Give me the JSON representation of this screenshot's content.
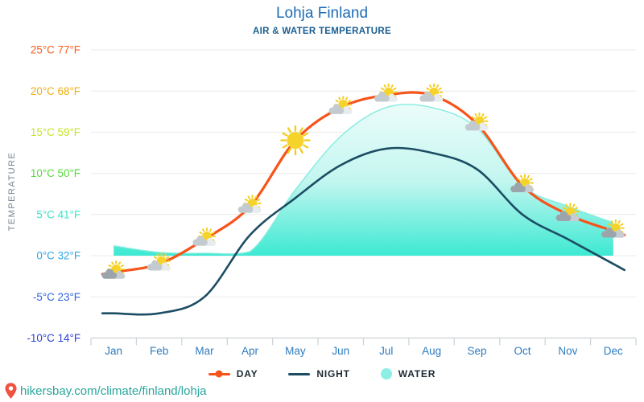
{
  "page": {
    "footer_url": "hikersbay.com/climate/finland/lohja"
  },
  "chart_data": {
    "type": "line",
    "title": "Lohja Finland",
    "subtitle": "AIR & WATER TEMPERATURE",
    "ylabel": "TEMPERATURE",
    "ylim": [
      -10,
      25
    ],
    "grid": true,
    "legend_position": "bottom",
    "months": [
      "Jan",
      "Feb",
      "Mar",
      "Apr",
      "May",
      "Jun",
      "Jul",
      "Aug",
      "Sep",
      "Oct",
      "Nov",
      "Dec"
    ],
    "month_label_color": "#2e7cbf",
    "y_ticks": [
      {
        "t": 25,
        "label": "25°C 77°F",
        "color": "#f4601d"
      },
      {
        "t": 20,
        "label": "20°C 68°F",
        "color": "#eeb012"
      },
      {
        "t": 15,
        "label": "15°C 59°F",
        "color": "#c7e32a"
      },
      {
        "t": 10,
        "label": "10°C 50°F",
        "color": "#58d93f"
      },
      {
        "t": 5,
        "label": "5°C 41°F",
        "color": "#3be3c5"
      },
      {
        "t": 0,
        "label": "0°C 32°F",
        "color": "#31a6e3"
      },
      {
        "t": -5,
        "label": "-5°C 23°F",
        "color": "#2e63e0"
      },
      {
        "t": -10,
        "label": "-10°C 14°F",
        "color": "#2e41d6"
      }
    ],
    "series": [
      {
        "name": "DAY",
        "color": "#f7531a",
        "values": [
          -2,
          -1,
          2,
          6,
          14,
          18,
          19.5,
          19.5,
          16,
          8.5,
          5,
          3
        ],
        "icons": [
          "heavy",
          "light",
          "light",
          "light",
          "sun",
          "light",
          "light",
          "light",
          "light",
          "heavy",
          "heavy",
          "heavy"
        ]
      },
      {
        "name": "NIGHT",
        "color": "#1b4d63",
        "values": [
          -7,
          -7,
          -5,
          2.5,
          7,
          11,
          13,
          12.5,
          10.5,
          5,
          2,
          -1
        ]
      },
      {
        "name": "WATER",
        "color": "#3de9d2",
        "edge_color": "#84ecdf",
        "legend_color": "#8deee6",
        "values": [
          1.2,
          0.4,
          0.3,
          0.5,
          8,
          14.5,
          18,
          18,
          15.5,
          8.5,
          6,
          4
        ]
      }
    ]
  }
}
